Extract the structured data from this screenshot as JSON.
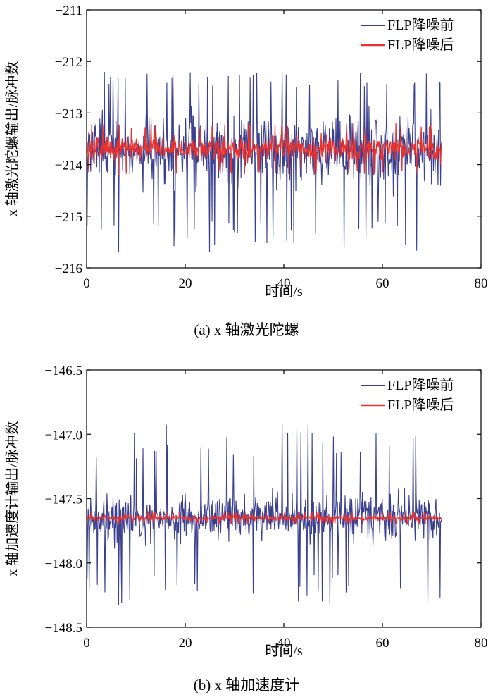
{
  "chart_data": [
    {
      "type": "line",
      "caption": "(a) x 轴激光陀螺",
      "xlabel": "时间/s",
      "ylabel": "x 轴激光陀螺输出/脉冲数",
      "xlim": [
        0,
        80
      ],
      "ylim": [
        -216,
        -211
      ],
      "xticks": [
        0,
        20,
        40,
        60,
        80
      ],
      "yticks": [
        -216,
        -215,
        -214,
        -213,
        -212,
        -211
      ],
      "ytick_labels": [
        "−216",
        "−215",
        "−214",
        "−213",
        "−212",
        "−211"
      ],
      "legend": "top-right",
      "grid": false,
      "series": [
        {
          "name": "FLP降噪前",
          "color": "#3b3f8f",
          "x_range": [
            0,
            72
          ],
          "center": -213.7,
          "envelope_low": -214.7,
          "envelope_high": -212.7,
          "min": -215.7,
          "max": -212.2
        },
        {
          "name": "FLP降噪后",
          "color": "#e8322f",
          "x_range": [
            0,
            72
          ],
          "center": -213.7,
          "envelope_low": -214.05,
          "envelope_high": -213.35,
          "min": -214.2,
          "max": -213.2
        }
      ]
    },
    {
      "type": "line",
      "caption": "(b) x 轴加速度计",
      "xlabel": "时间/s",
      "ylabel": "x 轴加速度计输出/脉冲数",
      "xlim": [
        0,
        80
      ],
      "ylim": [
        -148.5,
        -146.5
      ],
      "xticks": [
        0,
        20,
        40,
        60,
        80
      ],
      "yticks": [
        -148.5,
        -148.0,
        -147.5,
        -147.0,
        -146.5
      ],
      "ytick_labels": [
        "−148.5",
        "−148.0",
        "−147.5",
        "−147.0",
        "−146.5"
      ],
      "legend": "top-right",
      "grid": false,
      "series": [
        {
          "name": "FLP降噪前",
          "color": "#3b3f8f",
          "x_range": [
            0,
            72
          ],
          "center": -147.65,
          "envelope_low": -147.92,
          "envelope_high": -147.38,
          "min": -148.33,
          "max": -146.92
        },
        {
          "name": "FLP降噪后",
          "color": "#e8322f",
          "x_range": [
            0,
            72
          ],
          "center": -147.65,
          "envelope_low": -147.68,
          "envelope_high": -147.62,
          "min": -147.7,
          "max": -147.6
        }
      ]
    }
  ]
}
